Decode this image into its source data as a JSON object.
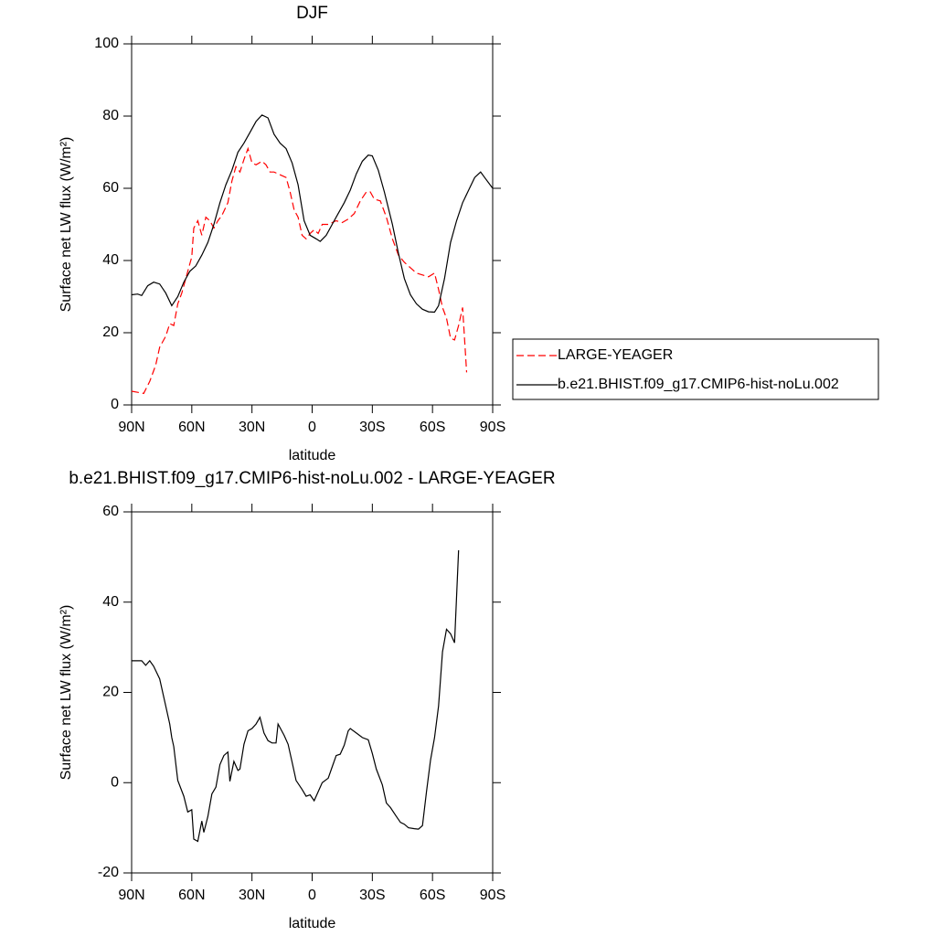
{
  "chart_data": [
    {
      "type": "line",
      "title": "DJF",
      "xlabel": "latitude",
      "ylabel": "Surface net LW flux (W/m²)",
      "xlim": [
        90,
        -90
      ],
      "xticks": [
        {
          "value": 90,
          "label": "90N"
        },
        {
          "value": 60,
          "label": "60N"
        },
        {
          "value": 30,
          "label": "30N"
        },
        0,
        {
          "value": -30,
          "label": "30S"
        },
        {
          "value": -60,
          "label": "60S"
        },
        {
          "value": -90,
          "label": "90S"
        }
      ],
      "ylim": [
        0,
        100
      ],
      "yticks": [
        0,
        20,
        40,
        60,
        80,
        100
      ],
      "legend": "right",
      "series": [
        {
          "name": "LARGE-YEAGER",
          "color": "#ff0000",
          "dashed": true,
          "x": [
            90,
            87,
            84,
            81,
            78,
            76,
            73,
            71,
            69,
            67,
            65,
            62,
            60,
            59,
            57,
            55,
            53,
            51,
            49,
            47,
            45,
            42,
            40,
            38,
            36,
            34,
            32,
            30,
            28,
            25,
            23,
            21,
            19,
            17,
            15,
            13,
            11,
            9,
            7,
            5,
            3,
            1,
            -1,
            -3,
            -5,
            -8,
            -12,
            -15,
            -18,
            -21,
            -24,
            -27,
            -29,
            -31,
            -34,
            -37,
            -40,
            -43,
            -46,
            -49,
            -52,
            -55,
            -58,
            -61,
            -63,
            -65,
            -67,
            -69,
            -71,
            -73,
            -75,
            -77
          ],
          "values": [
            3.8,
            3.5,
            3.2,
            6.5,
            11,
            16,
            19,
            22.5,
            22,
            28,
            31,
            37,
            41,
            49,
            51,
            47,
            52,
            51,
            49,
            51,
            52.5,
            56,
            62,
            66,
            64.5,
            68,
            71,
            67,
            66.5,
            67.5,
            66.5,
            64.5,
            64.5,
            64,
            63.5,
            63,
            59,
            54,
            52,
            47,
            46,
            47.5,
            48.5,
            47.5,
            50,
            50,
            51,
            50.5,
            51.5,
            53,
            56.5,
            59,
            59,
            57,
            56.5,
            52,
            46,
            41.5,
            39.5,
            38,
            36.5,
            36,
            35.5,
            36.5,
            32,
            27,
            24,
            18.5,
            18,
            22,
            27,
            9
          ]
        },
        {
          "name": "b.e21.BHIST.f09_g17.CMIP6-hist-noLu.002",
          "color": "#000000",
          "dashed": false,
          "x": [
            90,
            87,
            85,
            82,
            79,
            76,
            73,
            70,
            67,
            64,
            61,
            58,
            55,
            52,
            49,
            46,
            43,
            40,
            37,
            34,
            31,
            28,
            25,
            22,
            19,
            16,
            13,
            10,
            7,
            4,
            1,
            -2,
            -4,
            -7,
            -10,
            -13,
            -16,
            -19,
            -22,
            -25,
            -28,
            -30,
            -33,
            -36,
            -40,
            -43,
            -46,
            -49,
            -52,
            -55,
            -58,
            -61,
            -63,
            -66,
            -69,
            -72,
            -75,
            -78,
            -81,
            -84,
            -86,
            -90
          ],
          "values": [
            30.5,
            30.7,
            30.3,
            33,
            34,
            33.5,
            31,
            27.5,
            30,
            34,
            37,
            38.5,
            41.5,
            45,
            50,
            56,
            61,
            65,
            70,
            72.5,
            75.5,
            78.5,
            80.3,
            79.5,
            75,
            72.5,
            71,
            67,
            61,
            51,
            47,
            46,
            45.3,
            47,
            50,
            53,
            56,
            59.5,
            64,
            67.5,
            69.2,
            69,
            65,
            59,
            50,
            42,
            35,
            30.5,
            28,
            26.5,
            25.8,
            25.7,
            27.5,
            35,
            45,
            51,
            56,
            59.5,
            63,
            64.5,
            63,
            60
          ]
        }
      ]
    },
    {
      "type": "line",
      "title": "b.e21.BHIST.f09_g17.CMIP6-hist-noLu.002 - LARGE-YEAGER",
      "xlabel": "latitude",
      "ylabel": "Surface net LW flux (W/m²)",
      "xlim": [
        90,
        -90
      ],
      "xticks": [
        {
          "value": 90,
          "label": "90N"
        },
        {
          "value": 60,
          "label": "60N"
        },
        {
          "value": 30,
          "label": "30N"
        },
        0,
        {
          "value": -30,
          "label": "30S"
        },
        {
          "value": -60,
          "label": "60S"
        },
        {
          "value": -90,
          "label": "90S"
        }
      ],
      "ylim": [
        -20,
        60
      ],
      "yticks": [
        -20,
        0,
        20,
        40,
        60
      ],
      "series": [
        {
          "color": "#000000",
          "dashed": false,
          "x": [
            90,
            87,
            85,
            83,
            81,
            79,
            76,
            73,
            71,
            70,
            69,
            67,
            64,
            62,
            60,
            59,
            57,
            55,
            54,
            52,
            50,
            48,
            46,
            44,
            42,
            41,
            39,
            37,
            36,
            34,
            32,
            30,
            28,
            26,
            24,
            22,
            20,
            18,
            17,
            14,
            12,
            10,
            8,
            5,
            3,
            1,
            -1,
            -3,
            -5,
            -8,
            -10,
            -12,
            -14,
            -16,
            -18,
            -19,
            -22,
            -25,
            -28,
            -30,
            -32,
            -35,
            -37,
            -39,
            -42,
            -44,
            -46,
            -48,
            -51,
            -53,
            -55,
            -57,
            -59,
            -61,
            -63,
            -65,
            -67,
            -69,
            -71,
            -73
          ],
          "values": [
            27,
            27,
            27,
            26,
            27,
            25.8,
            23,
            17,
            13,
            10,
            8,
            0.5,
            -3,
            -6.5,
            -6,
            -12.5,
            -13,
            -8.5,
            -11,
            -7.5,
            -2.5,
            -1,
            4,
            6,
            6.8,
            0.3,
            4.7,
            2.7,
            3,
            8.5,
            11.5,
            12,
            13,
            14.5,
            11,
            9.3,
            8.8,
            8.8,
            13,
            10.5,
            8.5,
            4.5,
            0.5,
            -1.5,
            -3,
            -2.7,
            -4,
            -2,
            0,
            1,
            3.5,
            6,
            6.3,
            8.3,
            11.5,
            12,
            11,
            10,
            9.5,
            6.5,
            3,
            -0.5,
            -4.5,
            -5.5,
            -7.5,
            -8.8,
            -9.2,
            -10,
            -10.2,
            -10.3,
            -9.5,
            -2,
            5,
            10,
            17,
            29,
            34,
            33,
            31,
            51.5
          ]
        }
      ]
    }
  ]
}
